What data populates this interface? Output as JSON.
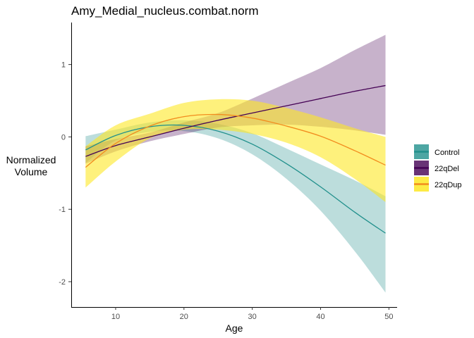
{
  "chart_data": {
    "type": "line",
    "title": "Amy_Medial_nucleus.combat.norm",
    "xlabel": "Age",
    "ylabel": [
      "Normalized",
      "Volume"
    ],
    "xlim": [
      3.5,
      51.2
    ],
    "ylim": [
      -2.35,
      1.58
    ],
    "x_ticks": [
      10,
      20,
      30,
      40,
      50
    ],
    "y_ticks": [
      -2,
      -1,
      0,
      1
    ],
    "grid": false,
    "legend_position": "right",
    "x": [
      5.6,
      10,
      15,
      20,
      25,
      30,
      35,
      40,
      45,
      49.5
    ],
    "series": [
      {
        "name": "Control",
        "color": "#21908C",
        "values": [
          -0.18,
          0.02,
          0.14,
          0.16,
          0.08,
          -0.1,
          -0.37,
          -0.69,
          -1.04,
          -1.33
        ],
        "lower": [
          -0.36,
          -0.05,
          0.07,
          0.08,
          -0.02,
          -0.24,
          -0.58,
          -1.02,
          -1.58,
          -2.15
        ],
        "upper": [
          0.01,
          0.1,
          0.2,
          0.23,
          0.18,
          0.05,
          -0.16,
          -0.38,
          -0.6,
          -0.82
        ]
      },
      {
        "name": "22qDel",
        "color": "#440154",
        "values": [
          -0.27,
          -0.12,
          0.0,
          0.12,
          0.23,
          0.33,
          0.43,
          0.53,
          0.63,
          0.71
        ],
        "lower": [
          -0.37,
          -0.2,
          -0.06,
          0.04,
          0.13,
          0.16,
          0.17,
          0.14,
          0.09,
          0.03
        ],
        "upper": [
          -0.13,
          -0.03,
          0.06,
          0.2,
          0.33,
          0.53,
          0.74,
          0.95,
          1.2,
          1.41
        ]
      },
      {
        "name": "22qDup",
        "color": "#FDE725",
        "line_color": "#F28C1E",
        "values": [
          -0.42,
          -0.09,
          0.15,
          0.28,
          0.31,
          0.26,
          0.15,
          0.01,
          -0.19,
          -0.39
        ],
        "lower": [
          -0.7,
          -0.34,
          -0.02,
          0.1,
          0.1,
          0.04,
          -0.08,
          -0.28,
          -0.58,
          -0.9
        ],
        "upper": [
          -0.13,
          0.16,
          0.32,
          0.47,
          0.52,
          0.5,
          0.4,
          0.27,
          0.12,
          0.0
        ]
      }
    ]
  }
}
